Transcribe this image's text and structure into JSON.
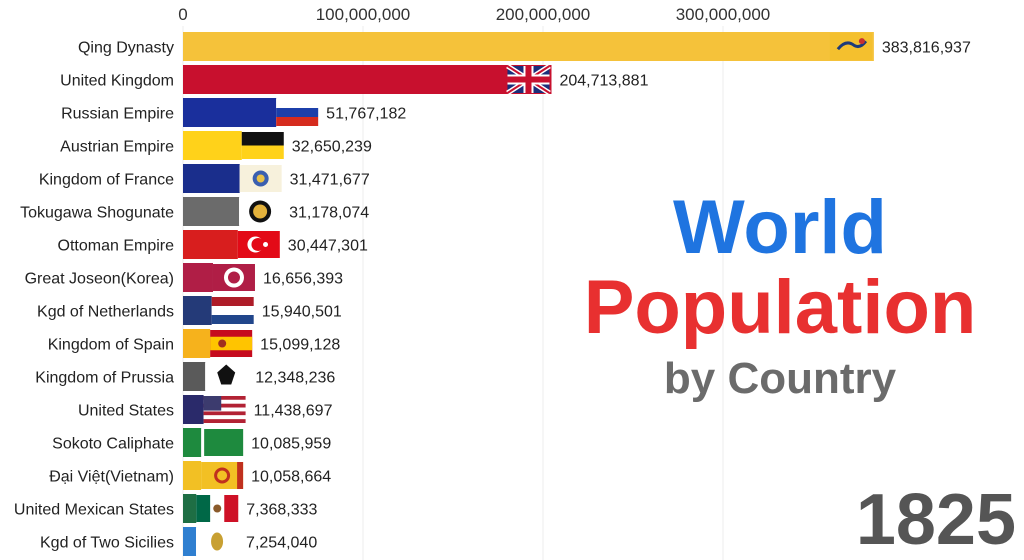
{
  "title": {
    "line1": "World",
    "line2": "Population",
    "line3": "by Country",
    "colors": {
      "line1": "#1f74e0",
      "line2": "#e83030",
      "line3": "#6b6b6b"
    }
  },
  "year": "1825",
  "chart_data": {
    "type": "bar",
    "orientation": "horizontal",
    "xlim": [
      0,
      400000000
    ],
    "xticks": [
      0,
      100000000,
      200000000,
      300000000
    ],
    "xtick_labels": [
      "0",
      "100,000,000",
      "200,000,000",
      "300,000,000"
    ],
    "grid": true,
    "categories": [
      "Qing Dynasty",
      "United Kingdom",
      "Russian Empire",
      "Austrian Empire",
      "Kingdom of France",
      "Tokugawa Shogunate",
      "Ottoman Empire",
      "Great Joseon(Korea)",
      "Kgd of Netherlands",
      "Kingdom of Spain",
      "Kingdom of Prussia",
      "United States",
      "Sokoto Caliphate",
      "Đại Việt(Vietnam)",
      "United Mexican States",
      "Kgd of Two Sicilies"
    ],
    "values": [
      383816937,
      204713881,
      51767182,
      32650239,
      31471677,
      31178074,
      30447301,
      16656393,
      15940501,
      15099128,
      12348236,
      11438697,
      10085959,
      10058664,
      7368333,
      7254040
    ],
    "value_labels": [
      "383,816,937",
      "204,713,881",
      "51,767,182",
      "32,650,239",
      "31,471,677",
      "31,178,074",
      "30,447,301",
      "16,656,393",
      "15,940,501",
      "15,099,128",
      "12,348,236",
      "11,438,697",
      "10,085,959",
      "10,058,664",
      "7,368,333",
      "7,254,040"
    ],
    "colors": [
      "#f5c23a",
      "#c8102e",
      "#1a2f9c",
      "#ffd21a",
      "#1a2e8c",
      "#6b6b6b",
      "#d81e1e",
      "#b01e46",
      "#243a78",
      "#f6b21c",
      "#5a5a5a",
      "#2a2a6a",
      "#1e8a3e",
      "#f2c024",
      "#1e6e44",
      "#2f7fd0"
    ],
    "flag_icons": [
      "qing-dragon-flag-icon",
      "union-jack-flag-icon",
      "russia-flag-icon",
      "austria-flag-icon",
      "france-bourbon-flag-icon",
      "tokugawa-mon-flag-icon",
      "ottoman-flag-icon",
      "joseon-flag-icon",
      "netherlands-flag-icon",
      "spain-flag-icon",
      "prussia-flag-icon",
      "usa-flag-icon",
      "sokoto-flag-icon",
      "vietnam-flag-icon",
      "mexico-flag-icon",
      "two-sicilies-flag-icon"
    ]
  }
}
